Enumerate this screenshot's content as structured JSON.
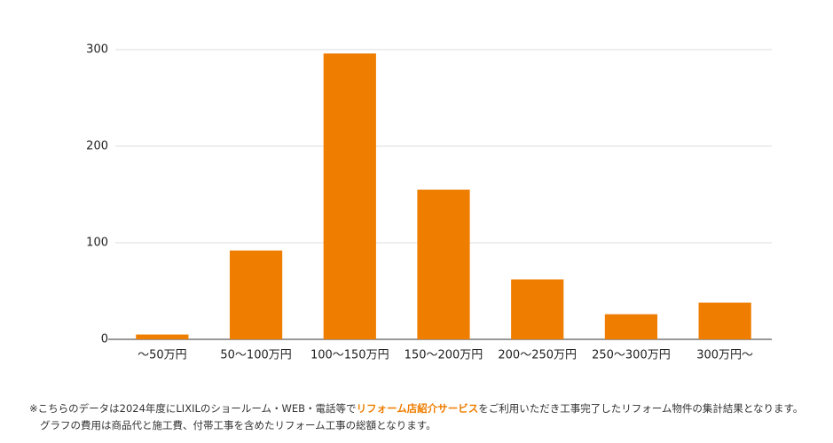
{
  "chart_data": {
    "type": "bar",
    "categories": [
      "〜50万円",
      "50〜100万円",
      "100〜150万円",
      "150〜200万円",
      "200〜250万円",
      "250〜300万円",
      "300万円〜"
    ],
    "values": [
      5,
      92,
      296,
      155,
      62,
      26,
      38
    ],
    "color": "#ef7d00",
    "ylim": [
      0,
      300
    ],
    "yticks": [
      0,
      100,
      200,
      300
    ],
    "grid": true,
    "note": {
      "prefix": "※こちらのデータは2024年度にLIXILのショールーム・WEB・電話等で",
      "link": "リフォーム店紹介サービス",
      "suffix": "をご利用いただき工事完了したリフォーム物件の集計結果となります。",
      "line2": "グラフの費用は商品代と施工費、付帯工事を含めたリフォーム工事の総額となります。"
    }
  }
}
